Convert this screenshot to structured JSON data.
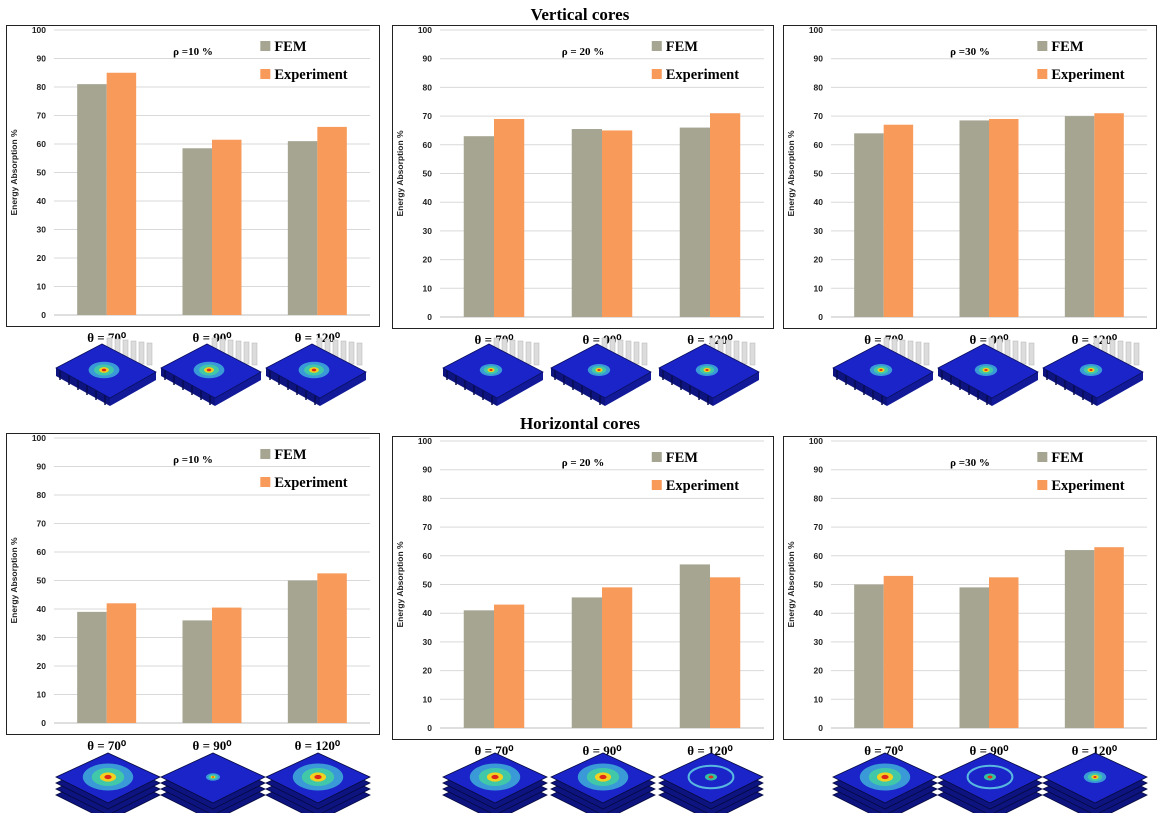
{
  "sections": {
    "vertical_title": "Vertical cores",
    "horizontal_title": "Horizontal cores"
  },
  "colors": {
    "fem": "#a5a592",
    "experiment": "#f79a5a",
    "core_blue": "#1a24c8",
    "frame": "#222222"
  },
  "chart_data": [
    {
      "type": "bar",
      "group": "Vertical cores",
      "annotation": "ρ =10 %",
      "ylabel": "Energy Absorption %",
      "ylim": [
        0,
        100
      ],
      "yticks": [
        0,
        10,
        20,
        30,
        40,
        50,
        60,
        70,
        80,
        90,
        100
      ],
      "categories": [
        "θ = 70⁰",
        "θ = 90⁰",
        "θ = 120⁰"
      ],
      "series": [
        {
          "name": "FEM",
          "values": [
            81,
            58.5,
            61
          ]
        },
        {
          "name": "Experiment",
          "values": [
            85,
            61.5,
            66
          ]
        }
      ]
    },
    {
      "type": "bar",
      "group": "Vertical cores",
      "annotation": "ρ = 20 %",
      "ylabel": "Energy Absorption %",
      "ylim": [
        0,
        100
      ],
      "yticks": [
        0,
        10,
        20,
        30,
        40,
        50,
        60,
        70,
        80,
        90,
        100
      ],
      "categories": [
        "θ = 70⁰",
        "θ = 90⁰",
        "θ = 120⁰"
      ],
      "series": [
        {
          "name": "FEM",
          "values": [
            63,
            65.5,
            66
          ]
        },
        {
          "name": "Experiment",
          "values": [
            69,
            65,
            71
          ]
        }
      ]
    },
    {
      "type": "bar",
      "group": "Vertical cores",
      "annotation": "ρ =30 %",
      "ylabel": "Energy Absorption %",
      "ylim": [
        0,
        100
      ],
      "yticks": [
        0,
        10,
        20,
        30,
        40,
        50,
        60,
        70,
        80,
        90,
        100
      ],
      "categories": [
        "θ = 70⁰",
        "θ = 90⁰",
        "θ = 120⁰"
      ],
      "series": [
        {
          "name": "FEM",
          "values": [
            64,
            68.5,
            70
          ]
        },
        {
          "name": "Experiment",
          "values": [
            67,
            69,
            71
          ]
        }
      ]
    },
    {
      "type": "bar",
      "group": "Horizontal cores",
      "annotation": "ρ =10 %",
      "ylabel": "Energy Absorption %",
      "ylim": [
        0,
        100
      ],
      "yticks": [
        0,
        10,
        20,
        30,
        40,
        50,
        60,
        70,
        80,
        90,
        100
      ],
      "categories": [
        "θ = 70⁰",
        "θ = 90⁰",
        "θ = 120⁰"
      ],
      "series": [
        {
          "name": "FEM",
          "values": [
            39,
            36,
            50
          ]
        },
        {
          "name": "Experiment",
          "values": [
            42,
            40.5,
            52.5
          ]
        }
      ]
    },
    {
      "type": "bar",
      "group": "Horizontal cores",
      "annotation": "ρ = 20 %",
      "ylabel": "Energy Absorption %",
      "ylim": [
        0,
        100
      ],
      "yticks": [
        0,
        10,
        20,
        30,
        40,
        50,
        60,
        70,
        80,
        90,
        100
      ],
      "categories": [
        "θ = 70⁰",
        "θ = 90⁰",
        "θ = 120⁰"
      ],
      "series": [
        {
          "name": "FEM",
          "values": [
            41,
            45.5,
            57
          ]
        },
        {
          "name": "Experiment",
          "values": [
            43,
            49,
            52.5
          ]
        }
      ]
    },
    {
      "type": "bar",
      "group": "Horizontal cores",
      "annotation": "ρ =30 %",
      "ylabel": "Energy Absorption %",
      "ylim": [
        0,
        100
      ],
      "yticks": [
        0,
        10,
        20,
        30,
        40,
        50,
        60,
        70,
        80,
        90,
        100
      ],
      "categories": [
        "θ = 70⁰",
        "θ = 90⁰",
        "θ = 120⁰"
      ],
      "series": [
        {
          "name": "FEM",
          "values": [
            50,
            49,
            62
          ]
        },
        {
          "name": "Experiment",
          "values": [
            53,
            52.5,
            63
          ]
        }
      ]
    }
  ],
  "thumbnails": {
    "vertical": [
      [
        {
          "spot": "medium"
        },
        {
          "spot": "medium"
        },
        {
          "spot": "medium"
        }
      ],
      [
        {
          "spot": "small"
        },
        {
          "spot": "small"
        },
        {
          "spot": "small"
        }
      ],
      [
        {
          "spot": "small"
        },
        {
          "spot": "small"
        },
        {
          "spot": "small"
        }
      ]
    ],
    "horizontal": [
      [
        {
          "spot": "large"
        },
        {
          "spot": "tiny"
        },
        {
          "spot": "large"
        }
      ],
      [
        {
          "spot": "large"
        },
        {
          "spot": "large"
        },
        {
          "spot": "ring"
        }
      ],
      [
        {
          "spot": "large"
        },
        {
          "spot": "ring"
        },
        {
          "spot": "small"
        }
      ]
    ]
  }
}
